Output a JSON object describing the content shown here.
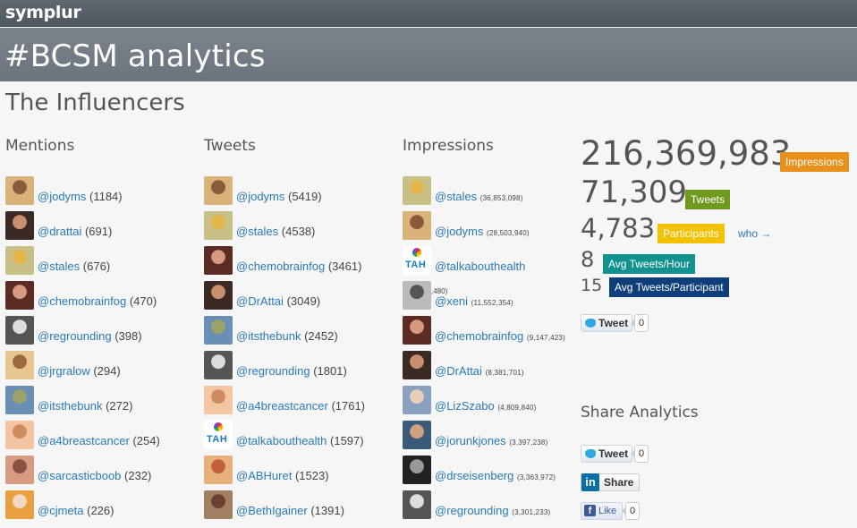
{
  "topbar": {
    "brand": "symplur"
  },
  "hero": {
    "title": "#BCSM analytics"
  },
  "section_title": "The Influencers",
  "columns": [
    {
      "heading": "Mentions",
      "rows": [
        {
          "handle": "@jodyms",
          "count": "(1184)",
          "avatar": "photo"
        },
        {
          "handle": "@drattai",
          "count": "(691)",
          "avatar": "photo"
        },
        {
          "handle": "@stales",
          "count": "(676)",
          "avatar": "photo"
        },
        {
          "handle": "@chemobrainfog",
          "count": "(470)",
          "avatar": "photo"
        },
        {
          "handle": "@regrounding",
          "count": "(398)",
          "avatar": "photo"
        },
        {
          "handle": "@jrgralow",
          "count": "(294)",
          "avatar": "photo"
        },
        {
          "handle": "@itsthebunk",
          "count": "(272)",
          "avatar": "photo"
        },
        {
          "handle": "@a4breastcancer",
          "count": "(254)",
          "avatar": "photo"
        },
        {
          "handle": "@sarcasticboob",
          "count": "(232)",
          "avatar": "photo"
        },
        {
          "handle": "@cjmeta",
          "count": "(226)",
          "avatar": "photo"
        }
      ]
    },
    {
      "heading": "Tweets",
      "rows": [
        {
          "handle": "@jodyms",
          "count": "(5419)",
          "avatar": "photo"
        },
        {
          "handle": "@stales",
          "count": "(4538)",
          "avatar": "photo"
        },
        {
          "handle": "@chemobrainfog",
          "count": "(3461)",
          "avatar": "photo"
        },
        {
          "handle": "@DrAttai",
          "count": "(3049)",
          "avatar": "photo"
        },
        {
          "handle": "@itsthebunk",
          "count": "(2452)",
          "avatar": "photo"
        },
        {
          "handle": "@regrounding",
          "count": "(1801)",
          "avatar": "photo"
        },
        {
          "handle": "@a4breastcancer",
          "count": "(1761)",
          "avatar": "photo"
        },
        {
          "handle": "@talkabouthealth",
          "count": "(1597)",
          "avatar": "tah"
        },
        {
          "handle": "@ABHuret",
          "count": "(1523)",
          "avatar": "photo"
        },
        {
          "handle": "@BethIgainer",
          "count": "(1391)",
          "avatar": "photo"
        }
      ]
    },
    {
      "heading": "Impressions",
      "rows": [
        {
          "handle": "@stales",
          "count": "(36,853,098)",
          "avatar": "photo"
        },
        {
          "handle": "@jodyms",
          "count": "(28,503,940)",
          "avatar": "photo"
        },
        {
          "handle": "@talkabouthealth",
          "count": "",
          "avatar": "tah"
        },
        {
          "handle": "@xeni",
          "count": "(11,552,354)",
          "avatar": "photo"
        },
        {
          "handle": "@chemobrainfog",
          "count": "(9,147,423)",
          "avatar": "photo"
        },
        {
          "handle": "@DrAttai",
          "count": "(8,381,701)",
          "avatar": "photo"
        },
        {
          "handle": "@LizSzabo",
          "count": "(4,809,840)",
          "avatar": "photo"
        },
        {
          "handle": "@jorunkjones",
          "count": "(3,397,238)",
          "avatar": "photo"
        },
        {
          "handle": "@drseisenberg",
          "count": "(3,363,972)",
          "avatar": "photo"
        },
        {
          "handle": "@regrounding",
          "count": "(3,301,233)",
          "avatar": "photo"
        }
      ],
      "stray_fragment": ",480)"
    }
  ],
  "stats": {
    "impressions": {
      "value": "216,369,983",
      "label": "Impressions",
      "color": "#e8901c"
    },
    "tweets": {
      "value": "71,309",
      "label": "Tweets",
      "color": "#6f9a1e"
    },
    "participants": {
      "value": "4,783",
      "label": "Participants",
      "color": "#f2c200",
      "link": "who →"
    },
    "avg_hour": {
      "value": "8",
      "label": "Avg Tweets/Hour",
      "color": "#12928f"
    },
    "avg_participant": {
      "value": "15",
      "label": "Avg Tweets/Participant",
      "color": "#0f3f7a"
    }
  },
  "tweet_top": {
    "label": "Tweet",
    "count": "0"
  },
  "share": {
    "heading": "Share Analytics",
    "tweet": {
      "label": "Tweet",
      "count": "0"
    },
    "linkedin": {
      "logo": "in",
      "label": "Share"
    },
    "facebook": {
      "logo": "f",
      "label": "Like",
      "count": "0"
    }
  },
  "avatar_colors": [
    [
      "#d9b27a",
      "#8a5a3a"
    ],
    [
      "#3b2a24",
      "#c98e6d"
    ],
    [
      "#c9c088",
      "#e4b64a"
    ],
    [
      "#5a2c22",
      "#d79a80"
    ],
    [
      "#555",
      "#ddd"
    ],
    [
      "#e8c690",
      "#9a6a3c"
    ],
    [
      "#6a8fb5",
      "#9aa26a"
    ],
    [
      "#f3c5a2",
      "#d08a60"
    ],
    [
      "#d69b80",
      "#8a5040"
    ],
    [
      "#e8a040",
      "#f3d8c0"
    ],
    [
      "#d9b27a",
      "#8a5a3a"
    ],
    [
      "#c9c088",
      "#e4b64a"
    ],
    [
      "#5a2c22",
      "#d79a80"
    ],
    [
      "#3b2a24",
      "#c98e6d"
    ],
    [
      "#6a8fb5",
      "#9aa26a"
    ],
    [
      "#555",
      "#ddd"
    ],
    [
      "#f3c5a2",
      "#d08a60"
    ],
    [
      "#fff",
      "#fff"
    ],
    [
      "#e8b07a",
      "#c0603c"
    ],
    [
      "#a08060",
      "#6a4030"
    ],
    [
      "#c9c088",
      "#e4b64a"
    ],
    [
      "#d9b27a",
      "#8a5a3a"
    ],
    [
      "#fff",
      "#fff"
    ],
    [
      "#bbb",
      "#555"
    ],
    [
      "#5a2c22",
      "#d79a80"
    ],
    [
      "#3b2a24",
      "#c98e6d"
    ],
    [
      "#8aa0c0",
      "#e8d0b8"
    ],
    [
      "#3a5a7a",
      "#d0a080"
    ],
    [
      "#222",
      "#999"
    ],
    [
      "#555",
      "#ddd"
    ]
  ]
}
